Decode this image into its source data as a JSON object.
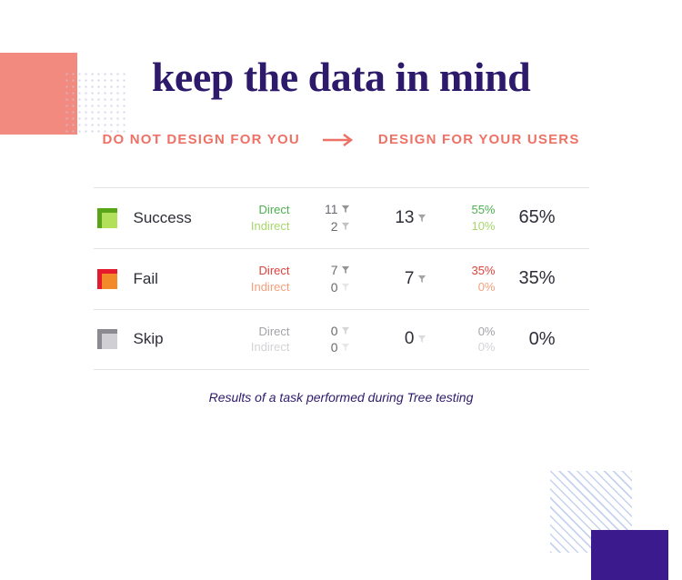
{
  "colors": {
    "accent_coral": "#ee7166",
    "deep_purple": "#2e1a6b",
    "purple_block": "#3a1a8c",
    "coral_block": "#f28a7f",
    "divider": "#e3e3e3",
    "green": "#4caf50",
    "green_dim": "#a8d66c",
    "red": "#e0423a",
    "red_dim": "#f3a07a",
    "grey": "#a2a2a8",
    "grey_light": "#d3d3d7"
  },
  "title": "keep the data in mind",
  "subtitle": {
    "left": "DO NOT DESIGN FOR YOU",
    "right": "DESIGN FOR YOUR USERS"
  },
  "table": {
    "sublabel_direct": "Direct",
    "sublabel_indirect": "Indirect",
    "rows": [
      {
        "name": "Success",
        "swatch_primary": "#58a618",
        "swatch_secondary": "#b2e05a",
        "label_color_class": "green",
        "dim_color_class": "green-dim",
        "direct_count": "11",
        "indirect_count": "2",
        "total_count": "13",
        "direct_pct": "55%",
        "indirect_pct": "10%",
        "total_pct": "65%"
      },
      {
        "name": "Fail",
        "swatch_primary": "#e51a2f",
        "swatch_secondary": "#f28a2a",
        "label_color_class": "red",
        "dim_color_class": "red-dim",
        "direct_count": "7",
        "indirect_count": "0",
        "total_count": "7",
        "direct_pct": "35%",
        "indirect_pct": "0%",
        "total_pct": "35%"
      },
      {
        "name": "Skip",
        "swatch_primary": "#8a8a90",
        "swatch_secondary": "#d0d0d4",
        "label_color_class": "grey",
        "dim_color_class": "grey-light",
        "direct_count": "0",
        "indirect_count": "0",
        "total_count": "0",
        "direct_pct": "0%",
        "indirect_pct": "0%",
        "total_pct": "0%"
      }
    ]
  },
  "caption": "Results of a task performed during Tree testing"
}
